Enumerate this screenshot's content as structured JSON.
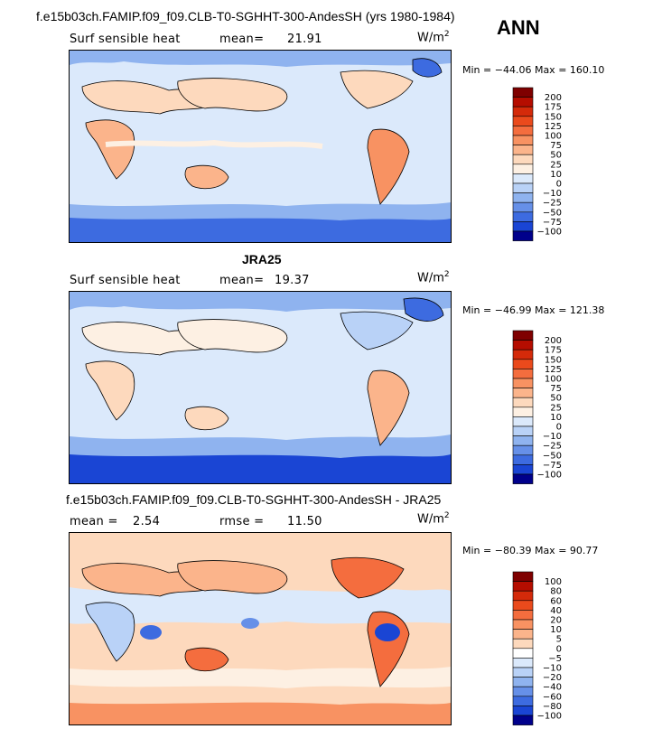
{
  "header": {
    "title": "f.e15b03ch.FAMIP.f09_f09.CLB-T0-SGHHT-300-AndesSH (yrs 1980-1984)",
    "season": "ANN"
  },
  "chart_data": [
    {
      "type": "heatmap",
      "panel": "model",
      "title": "f.e15b03ch.FAMIP.f09_f09.CLB-T0-SGHHT-300-AndesSH (yrs 1980-1984)",
      "variable": "Surf sensible heat",
      "mean_label": "mean=",
      "mean": "21.91",
      "units": "W/m",
      "units_exp": "2",
      "min_label": "Min =",
      "min": "−44.06",
      "max_label": "Max =",
      "max": "160.10",
      "colorbar": {
        "levels": [
          "200",
          "175",
          "150",
          "125",
          "100",
          "75",
          "50",
          "25",
          "10",
          "0",
          "−10",
          "−25",
          "−50",
          "−75",
          "−100"
        ],
        "colors": [
          "#7f0000",
          "#b50d00",
          "#d42a0a",
          "#ea4a1c",
          "#f46d3e",
          "#f89262",
          "#fbb48b",
          "#fdd9bd",
          "#fdf0e3",
          "#dbe9fb",
          "#b9d2f7",
          "#8fb3ef",
          "#6690e8",
          "#3d6be0",
          "#1a45d4",
          "#00008b"
        ]
      }
    },
    {
      "type": "heatmap",
      "panel": "obs",
      "title": "JRA25",
      "variable": "Surf sensible heat",
      "mean_label": "mean=",
      "mean": "19.37",
      "units": "W/m",
      "units_exp": "2",
      "min_label": "Min =",
      "min": "−46.99",
      "max_label": "Max =",
      "max": "121.38",
      "colorbar": {
        "levels": [
          "200",
          "175",
          "150",
          "125",
          "100",
          "75",
          "50",
          "25",
          "10",
          "0",
          "−10",
          "−25",
          "−50",
          "−75",
          "−100"
        ],
        "colors": [
          "#7f0000",
          "#b50d00",
          "#d42a0a",
          "#ea4a1c",
          "#f46d3e",
          "#f89262",
          "#fbb48b",
          "#fdd9bd",
          "#fdf0e3",
          "#dbe9fb",
          "#b9d2f7",
          "#8fb3ef",
          "#6690e8",
          "#3d6be0",
          "#1a45d4",
          "#00008b"
        ]
      }
    },
    {
      "type": "heatmap",
      "panel": "diff",
      "title": "f.e15b03ch.FAMIP.f09_f09.CLB-T0-SGHHT-300-AndesSH - JRA25",
      "mean_label": "mean =",
      "mean": "2.54",
      "rmse_label": "rmse =",
      "rmse": "11.50",
      "units": "W/m",
      "units_exp": "2",
      "min_label": "Min =",
      "min": "−80.39",
      "max_label": "Max =",
      "max": "90.77",
      "colorbar": {
        "levels": [
          "100",
          "80",
          "60",
          "40",
          "20",
          "10",
          "5",
          "0",
          "−5",
          "−10",
          "−20",
          "−40",
          "−60",
          "−80",
          "−100"
        ],
        "colors": [
          "#7f0000",
          "#b50d00",
          "#d42a0a",
          "#ea4a1c",
          "#f46d3e",
          "#f89262",
          "#fbb48b",
          "#fdd9bd",
          "#ffffff",
          "#dbe9fb",
          "#b9d2f7",
          "#8fb3ef",
          "#6690e8",
          "#3d6be0",
          "#1a45d4",
          "#00008b"
        ]
      }
    }
  ]
}
